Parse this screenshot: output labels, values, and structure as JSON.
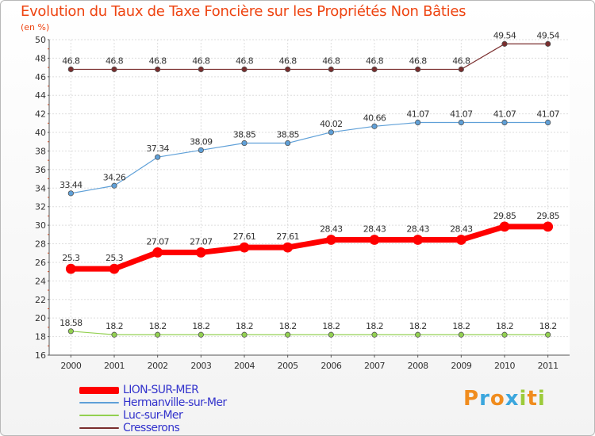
{
  "title": "Evolution du Taux de Taxe Foncière sur les Propriétés Non Bâties",
  "subtitle": "(en %)",
  "brand": {
    "letters": [
      "P",
      "r",
      "o",
      "x",
      "i",
      "t",
      "i"
    ],
    "colors": [
      "#f08c1e",
      "#3ba6dd",
      "#f08c1e",
      "#3ba6dd",
      "#9ccb3a",
      "#f08c1e",
      "#9ccb3a"
    ]
  },
  "chart_data": {
    "type": "line",
    "title": "Evolution du Taux de Taxe Foncière sur les Propriétés Non Bâties",
    "ylabel": "(en %)",
    "xlabel": "",
    "ylim": [
      16,
      50
    ],
    "yticks": [
      16,
      18,
      20,
      22,
      24,
      26,
      28,
      30,
      32,
      34,
      36,
      38,
      40,
      42,
      44,
      46,
      48,
      50
    ],
    "grid": true,
    "legend_position": "bottom-left",
    "categories": [
      "2000",
      "2001",
      "2002",
      "2003",
      "2004",
      "2005",
      "2006",
      "2007",
      "2008",
      "2009",
      "2010",
      "2011"
    ],
    "series": [
      {
        "name": "LION-SUR-MER",
        "color": "#ff0000",
        "values": [
          25.3,
          25.3,
          27.07,
          27.07,
          27.61,
          27.61,
          28.43,
          28.43,
          28.43,
          28.43,
          29.85,
          29.85
        ],
        "labels": [
          "25.3",
          "25.3",
          "27.07",
          "27.07",
          "27.61",
          "27.61",
          "28.43",
          "28.43",
          "28.43",
          "28.43",
          "29.85",
          "29.85"
        ]
      },
      {
        "name": "Hermanville-sur-Mer",
        "color": "#5fa0d8",
        "values": [
          33.44,
          34.26,
          37.34,
          38.09,
          38.85,
          38.85,
          40.02,
          40.66,
          41.07,
          41.07,
          41.07,
          41.07
        ],
        "labels": [
          "33.44",
          "34.26",
          "37.34",
          "38.09",
          "38.85",
          "38.85",
          "40.02",
          "40.66",
          "41.07",
          "41.07",
          "41.07",
          "41.07"
        ]
      },
      {
        "name": "Luc-sur-Mer",
        "color": "#92d050",
        "values": [
          18.58,
          18.2,
          18.2,
          18.2,
          18.2,
          18.2,
          18.2,
          18.2,
          18.2,
          18.2,
          18.2,
          18.2
        ],
        "labels": [
          "18.58",
          "18.2",
          "18.2",
          "18.2",
          "18.2",
          "18.2",
          "18.2",
          "18.2",
          "18.2",
          "18.2",
          "18.2",
          "18.2"
        ]
      },
      {
        "name": "Cresserons",
        "color": "#7a2e2e",
        "values": [
          46.8,
          46.8,
          46.8,
          46.8,
          46.8,
          46.8,
          46.8,
          46.8,
          46.8,
          46.8,
          49.54,
          49.54
        ],
        "labels": [
          "46.8",
          "46.8",
          "46.8",
          "46.8",
          "46.8",
          "46.8",
          "46.8",
          "46.8",
          "46.8",
          "46.8",
          "49.54",
          "49.54"
        ]
      }
    ]
  }
}
